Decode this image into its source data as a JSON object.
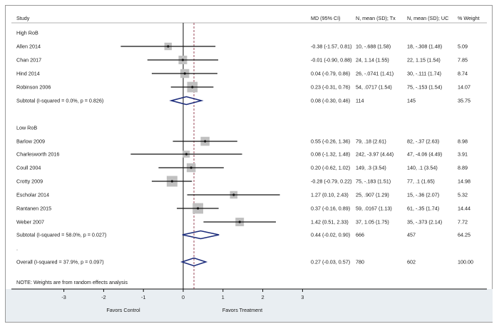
{
  "chart_data": {
    "type": "forest",
    "title": "",
    "columns": {
      "study": "Study",
      "md": "MD (95% CI)",
      "tx": "N, mean (SD); Tx",
      "uc": "N, mean (SD); UC",
      "weight": "% Weight"
    },
    "xlim": [
      -3,
      3
    ],
    "xticks": [
      -3,
      -2,
      -1,
      0,
      1,
      2,
      3
    ],
    "xlabel_left": "Favors Control",
    "xlabel_right": "Favors Treatment",
    "null_line": 0,
    "overall_line": 0.27,
    "note": "NOTE: Weights are from random effects analysis",
    "rows": [
      {
        "kind": "group",
        "label": "High RoB"
      },
      {
        "kind": "study",
        "label": "Allen 2014",
        "est": -0.38,
        "lo": -1.57,
        "hi": 0.81,
        "md": "-0.38 (-1.57, 0.81)",
        "tx": "10, -.688 (1.58)",
        "uc": "18, -.308 (1.48)",
        "weight": "5.09",
        "w": 5.09
      },
      {
        "kind": "study",
        "label": "Chan 2017",
        "est": -0.01,
        "lo": -0.9,
        "hi": 0.88,
        "md": "-0.01 (-0.90, 0.88)",
        "tx": "24, 1.14 (1.55)",
        "uc": "22, 1.15 (1.54)",
        "weight": "7.85",
        "w": 7.85
      },
      {
        "kind": "study",
        "label": "Hind 2014",
        "est": 0.04,
        "lo": -0.79,
        "hi": 0.86,
        "md": "0.04 (-0.79, 0.86)",
        "tx": "26, -.0741 (1.41)",
        "uc": "30, -.111 (1.74)",
        "weight": "8.74",
        "w": 8.74
      },
      {
        "kind": "study",
        "label": "Robinson 2006",
        "est": 0.23,
        "lo": -0.31,
        "hi": 0.76,
        "md": "0.23 (-0.31, 0.76)",
        "tx": "54, .0717 (1.54)",
        "uc": "75, -.153 (1.54)",
        "weight": "14.07",
        "w": 14.07
      },
      {
        "kind": "subtotal",
        "label": "Subtotal  (I-squared = 0.0%, p = 0.826)",
        "est": 0.08,
        "lo": -0.3,
        "hi": 0.46,
        "md": "0.08 (-0.30, 0.46)",
        "tx": "114",
        "uc": "145",
        "weight": "35.75"
      },
      {
        "kind": "blank",
        "label": ""
      },
      {
        "kind": "group",
        "label": "Low RoB"
      },
      {
        "kind": "study",
        "label": "Barlow 2009",
        "est": 0.55,
        "lo": -0.26,
        "hi": 1.36,
        "md": "0.55 (-0.26, 1.36)",
        "tx": "79, .18 (2.61)",
        "uc": "82, -.37 (2.63)",
        "weight": "8.98",
        "w": 8.98
      },
      {
        "kind": "study",
        "label": "Charlesworth 2016",
        "est": 0.08,
        "lo": -1.32,
        "hi": 1.48,
        "md": "0.08 (-1.32, 1.48)",
        "tx": "242, -3.97 (4.44)",
        "uc": "47, -4.06 (4.49)",
        "weight": "3.91",
        "w": 3.91
      },
      {
        "kind": "study",
        "label": "Coull 2004",
        "est": 0.2,
        "lo": -0.62,
        "hi": 1.02,
        "md": "0.20 (-0.62, 1.02)",
        "tx": "149, .3 (3.54)",
        "uc": "140, .1 (3.54)",
        "weight": "8.89",
        "w": 8.89
      },
      {
        "kind": "study",
        "label": "Crotty 2009",
        "est": -0.28,
        "lo": -0.79,
        "hi": 0.22,
        "md": "-0.28 (-0.79, 0.22)",
        "tx": "75, -.183 (1.51)",
        "uc": "77, .1 (1.65)",
        "weight": "14.98",
        "w": 14.98
      },
      {
        "kind": "study",
        "label": "Escholar 2014",
        "est": 1.27,
        "lo": 0.1,
        "hi": 2.43,
        "md": "1.27 (0.10, 2.43)",
        "tx": "25, .907 (1.29)",
        "uc": "15, -.36 (2.07)",
        "weight": "5.32",
        "w": 5.32
      },
      {
        "kind": "study",
        "label": "Rantanen 2015",
        "est": 0.37,
        "lo": -0.16,
        "hi": 0.89,
        "md": "0.37 (-0.16, 0.89)",
        "tx": "59, .0167 (1.13)",
        "uc": "61, -.35 (1.74)",
        "weight": "14.44",
        "w": 14.44
      },
      {
        "kind": "study",
        "label": "Weber 2007",
        "est": 1.42,
        "lo": 0.51,
        "hi": 2.33,
        "md": "1.42 (0.51, 2.33)",
        "tx": "37, 1.05 (1.75)",
        "uc": "35, -.373 (2.14)",
        "weight": "7.72",
        "w": 7.72
      },
      {
        "kind": "subtotal",
        "label": "Subtotal  (I-squared = 58.0%, p = 0.027)",
        "est": 0.44,
        "lo": -0.02,
        "hi": 0.9,
        "md": "0.44 (-0.02, 0.90)",
        "tx": "666",
        "uc": "457",
        "weight": "64.25"
      },
      {
        "kind": "group",
        "label": "."
      },
      {
        "kind": "overall",
        "label": "Overall  (I-squared = 37.9%, p = 0.097)",
        "est": 0.27,
        "lo": -0.03,
        "hi": 0.57,
        "md": "0.27 (-0.03, 0.57)",
        "tx": "780",
        "uc": "602",
        "weight": "100.00"
      }
    ]
  },
  "colors": {
    "box": "#c0c0c0",
    "diamond": "#1a2a7a",
    "dashed": "#9b4a5a",
    "axis_band": "#e9eef2"
  }
}
